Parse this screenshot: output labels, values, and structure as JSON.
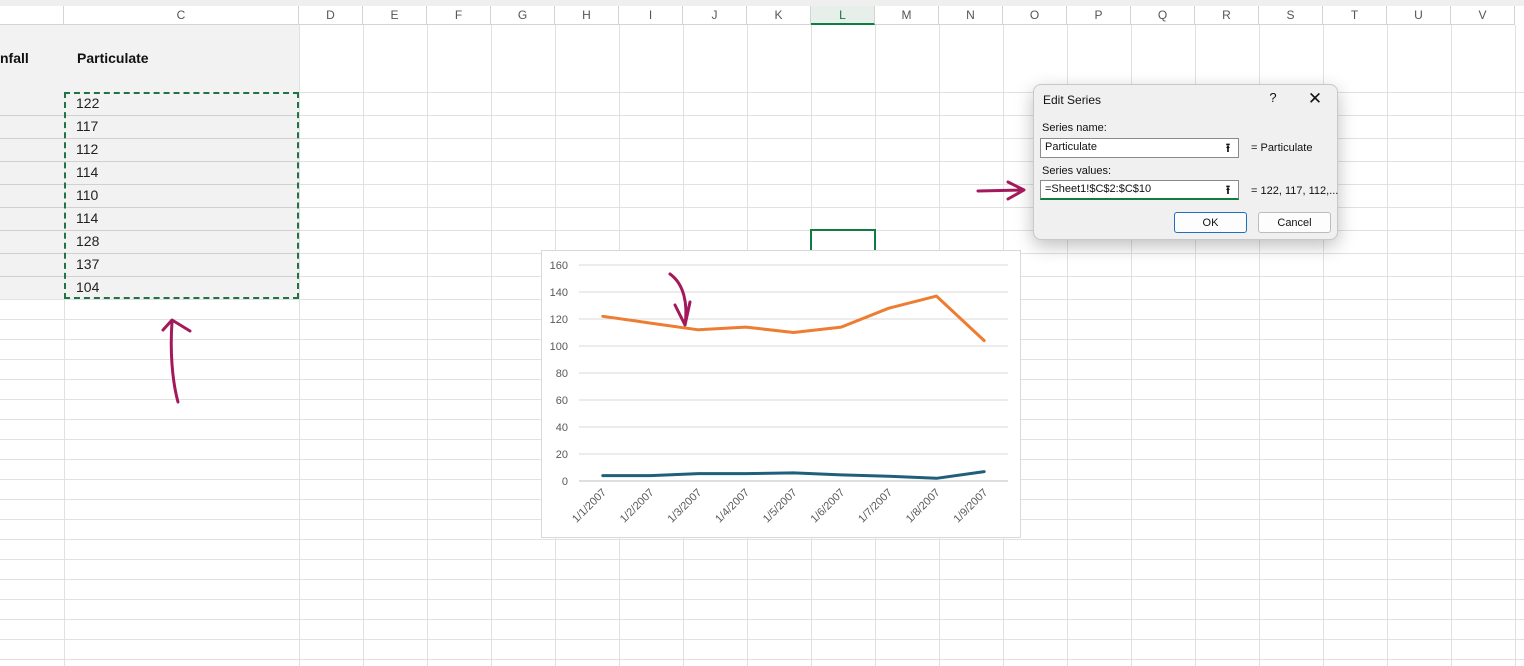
{
  "columns": {
    "c": "C",
    "d": "D",
    "e": "E",
    "f": "F",
    "g": "G",
    "h": "H",
    "i": "I",
    "j": "J",
    "k": "K",
    "l": "L",
    "m": "M",
    "n": "N",
    "o": "O",
    "p": "P",
    "q": "Q",
    "r": "R",
    "s": "S",
    "t": "T",
    "u": "U",
    "v": "V"
  },
  "sheet": {
    "header_b": "nfall",
    "header_c": "Particulate",
    "particulate_values": [
      "122",
      "117",
      "112",
      "114",
      "110",
      "114",
      "128",
      "137",
      "104"
    ]
  },
  "chart_data": {
    "type": "line",
    "categories": [
      "1/1/2007",
      "1/2/2007",
      "1/3/2007",
      "1/4/2007",
      "1/5/2007",
      "1/6/2007",
      "1/7/2007",
      "1/8/2007",
      "1/9/2007"
    ],
    "y_ticks": [
      "0",
      "20",
      "40",
      "60",
      "80",
      "100",
      "120",
      "140",
      "160"
    ],
    "ylim": [
      0,
      160
    ],
    "grid": true,
    "series": [
      {
        "values": [
          122,
          117,
          112,
          114,
          110,
          114,
          128,
          137,
          104
        ],
        "color": "#ed7d31"
      },
      {
        "values": [
          4,
          4,
          5.5,
          5.5,
          6,
          4.5,
          3.5,
          2,
          7
        ],
        "color": "#1f5f7a"
      }
    ]
  },
  "dialog": {
    "title": "Edit Series",
    "help": "?",
    "close": "✕",
    "series_name_label": "Series name:",
    "series_name_value": "Particulate",
    "series_name_preview": "= Particulate",
    "series_values_label": "Series values:",
    "series_values_value": "=Sheet1!$C$2:$C$10",
    "series_values_preview": "= 122, 117, 112,...",
    "collapse_icon": "⭱",
    "ok_label": "OK",
    "cancel_label": "Cancel"
  },
  "annotations": {
    "ink_color": "#a3195b"
  }
}
